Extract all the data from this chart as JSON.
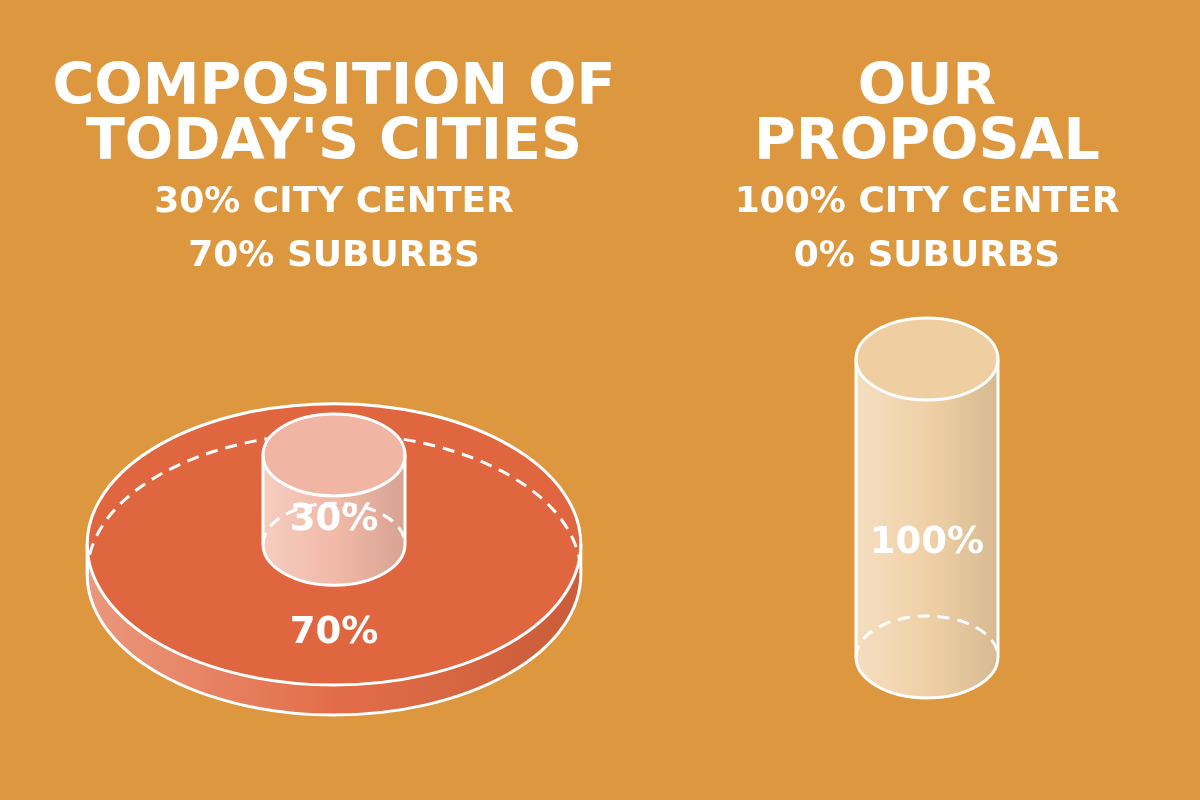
{
  "chart_data": [
    {
      "type": "other",
      "title": "COMPOSITION OF TODAY'S CITIES",
      "categories": [
        "CITY CENTER",
        "SUBURBS"
      ],
      "values": [
        30,
        70
      ],
      "colors": [
        "#f0b5a3",
        "#e0663f"
      ],
      "value_labels": [
        "30%",
        "70%"
      ]
    },
    {
      "type": "other",
      "title": "OUR PROPOSAL",
      "categories": [
        "CITY CENTER",
        "SUBURBS"
      ],
      "values": [
        100,
        0
      ],
      "colors": [
        "#efcfa2",
        null
      ],
      "value_labels": [
        "100%",
        "0%"
      ]
    }
  ]
}
